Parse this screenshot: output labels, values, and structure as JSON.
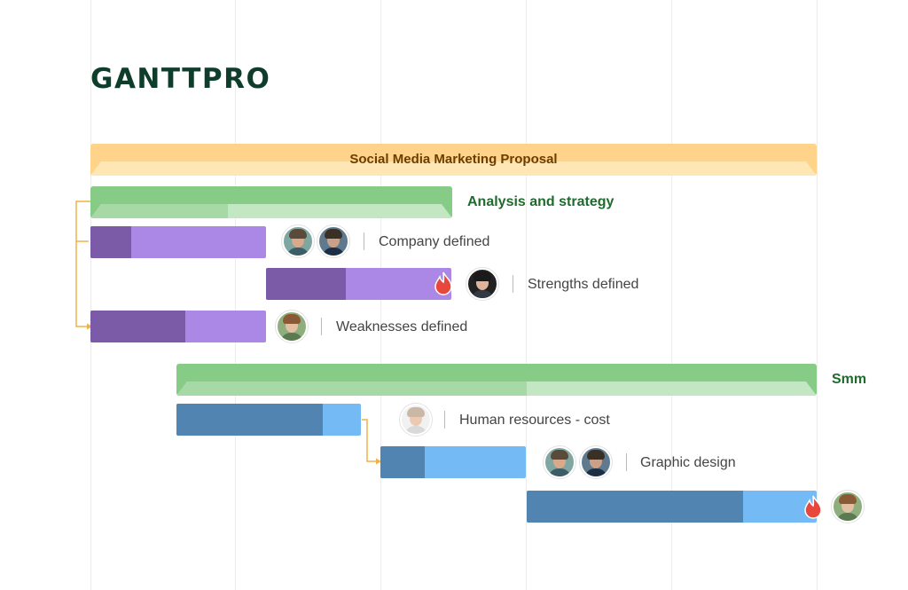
{
  "app": {
    "logo": "GANTTPRO"
  },
  "project": {
    "title": "Social Media Marketing Proposal"
  },
  "phases": [
    {
      "id": "analysis",
      "label": "Analysis and strategy"
    },
    {
      "id": "smm",
      "label": "Smm"
    }
  ],
  "tasks": [
    {
      "label": "Company defined",
      "color": "purple",
      "progress_pct": 23,
      "overdue": false,
      "assignees": 2
    },
    {
      "label": "Strengths defined",
      "color": "purple",
      "progress_pct": 43,
      "overdue": true,
      "assignees": 1
    },
    {
      "label": "Weaknesses defined",
      "color": "purple",
      "progress_pct": 54,
      "overdue": false,
      "assignees": 1
    },
    {
      "label": "Human resources - cost",
      "color": "blue",
      "progress_pct": 79,
      "overdue": false,
      "assignees": 1
    },
    {
      "label": "Graphic design",
      "color": "blue",
      "progress_pct": 30,
      "overdue": false,
      "assignees": 2
    },
    {
      "label": "",
      "color": "blue",
      "progress_pct": 75,
      "overdue": true,
      "assignees": 1
    }
  ],
  "colors": {
    "project": "#ffd48a",
    "phase": "#86cb86",
    "task_purple": "#ab87e6",
    "task_purple_done": "#7b5aa8",
    "task_blue": "#74baf5",
    "task_blue_done": "#5284b2",
    "dependency_arrow": "#f0b24a",
    "overdue_fire": "#e8483b"
  },
  "icons": [
    "fire-icon",
    "avatar-icon",
    "dependency-arrow-icon"
  ]
}
